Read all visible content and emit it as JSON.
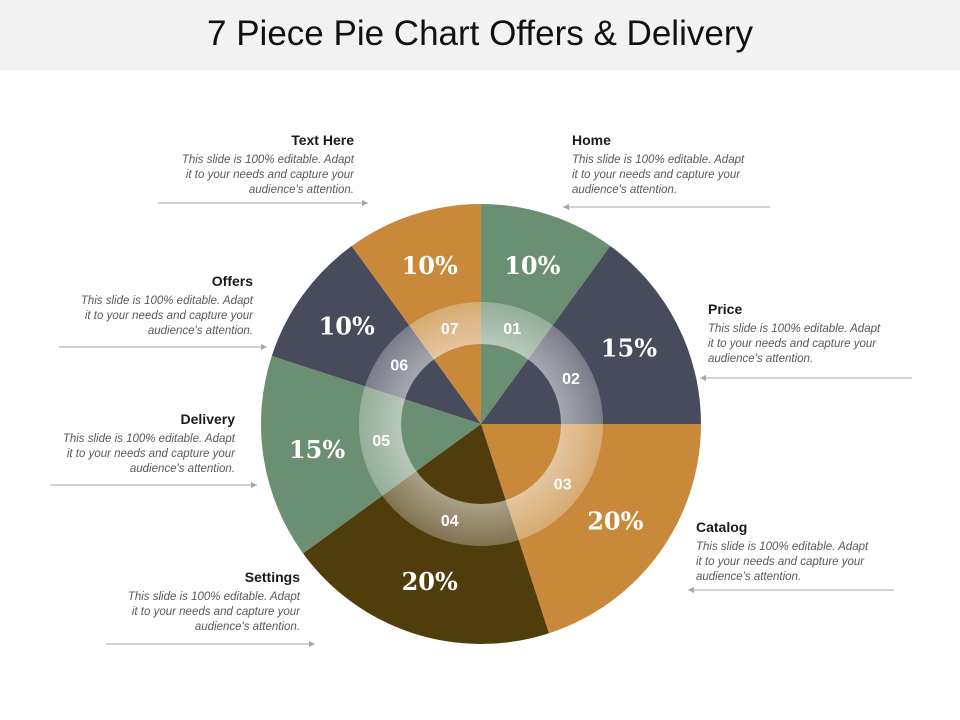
{
  "title": "7 Piece Pie Chart Offers & Delivery",
  "colors": {
    "green": "#6b8f72",
    "slate": "#474b5c",
    "orange": "#c8893a",
    "brown": "#513d0c",
    "arrow": "#a6a6a6"
  },
  "callout_text": "This slide is 100% editable. Adapt it to your needs and capture your audience's attention.",
  "callouts": [
    {
      "id": "01",
      "heading": "Home",
      "lines": [
        "This slide is 100% editable. Adapt",
        "it to your needs and capture your",
        "audience's attention."
      ]
    },
    {
      "id": "02",
      "heading": "Price",
      "lines": [
        "This slide is 100% editable. Adapt",
        "it to your needs and capture your",
        "audience's attention."
      ]
    },
    {
      "id": "03",
      "heading": "Catalog",
      "lines": [
        "This slide is 100% editable. Adapt",
        "it to your needs and capture your",
        "audience's attention."
      ]
    },
    {
      "id": "04",
      "heading": "Settings",
      "lines": [
        "This slide is 100% editable. Adapt",
        "it to your needs and capture your",
        "audience's attention."
      ]
    },
    {
      "id": "05",
      "heading": "Delivery",
      "lines": [
        "This slide is 100% editable. Adapt",
        "it to your needs and capture your",
        "audience's attention."
      ]
    },
    {
      "id": "06",
      "heading": "Offers",
      "lines": [
        "This slide is 100% editable. Adapt",
        "it to your needs and capture your",
        "audience's attention."
      ]
    },
    {
      "id": "07",
      "heading": "Text Here",
      "lines": [
        "This slide is 100% editable. Adapt",
        "it to your needs and capture your",
        "audience's attention."
      ]
    }
  ],
  "chart_data": {
    "type": "pie",
    "title": "7 Piece Pie Chart Offers & Delivery",
    "slices": [
      {
        "number": "01",
        "label": "Home",
        "value": 10,
        "display": "10%",
        "color": "#6b8f72"
      },
      {
        "number": "02",
        "label": "Price",
        "value": 15,
        "display": "15%",
        "color": "#474b5c"
      },
      {
        "number": "03",
        "label": "Catalog",
        "value": 20,
        "display": "20%",
        "color": "#c8893a"
      },
      {
        "number": "04",
        "label": "Settings",
        "value": 20,
        "display": "20%",
        "color": "#513d0c"
      },
      {
        "number": "05",
        "label": "Delivery",
        "value": 15,
        "display": "15%",
        "color": "#6b8f72"
      },
      {
        "number": "06",
        "label": "Offers",
        "value": 10,
        "display": "10%",
        "color": "#474b5c"
      },
      {
        "number": "07",
        "label": "Text Here",
        "value": 10,
        "display": "10%",
        "color": "#c8893a"
      }
    ]
  }
}
